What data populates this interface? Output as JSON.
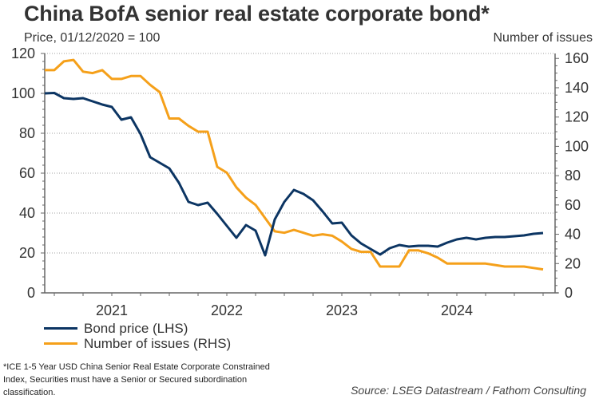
{
  "header": {
    "title": "China BofA senior real estate corporate bond*",
    "subtitle_left": "Price, 01/12/2020 = 100",
    "subtitle_right": "Number of issues"
  },
  "colors": {
    "bond_price": "#0c3563",
    "number_of_issues": "#f5a01a",
    "grid": "#a0a0a0",
    "axis": "#666666"
  },
  "chart_data": {
    "type": "line",
    "title": "China BofA senior real estate corporate bond*",
    "xlabel": "",
    "ylabel_left": "Price, 01/12/2020 = 100",
    "ylabel_right": "Number of issues",
    "x_start": "2020-12",
    "x_frequency": "monthly",
    "x_range_months": [
      0,
      52.25
    ],
    "x_year_labels": [
      {
        "label": "2021",
        "start_month": 1
      },
      {
        "label": "2022",
        "start_month": 13
      },
      {
        "label": "2023",
        "start_month": 25
      },
      {
        "label": "2024",
        "start_month": 37
      }
    ],
    "y_left": {
      "ticks": [
        0,
        20,
        40,
        60,
        80,
        100,
        120
      ],
      "lim": [
        0,
        120
      ]
    },
    "y_right": {
      "ticks": [
        0,
        20,
        40,
        60,
        80,
        100,
        120,
        140,
        160
      ],
      "lim": [
        0,
        163.4
      ]
    },
    "grid": true,
    "legend_position": "bottom-left",
    "series": [
      {
        "name": "Bond price (LHS)",
        "axis": "left",
        "values": [
          100.0,
          100.2,
          97.6,
          97.2,
          97.6,
          96.0,
          94.4,
          93.2,
          86.8,
          88.0,
          79.6,
          68.0,
          65.2,
          62.4,
          55.2,
          45.6,
          44.0,
          45.2,
          39.6,
          33.6,
          27.6,
          34.0,
          31.2,
          18.8,
          36.8,
          45.6,
          51.6,
          49.6,
          46.4,
          40.8,
          34.8,
          35.2,
          28.8,
          24.8,
          22.0,
          19.2,
          22.4,
          24.0,
          23.2,
          23.6,
          23.6,
          23.2,
          25.2,
          26.8,
          27.6,
          26.8,
          27.6,
          28.0,
          28.0,
          28.4,
          28.8,
          29.6,
          30.0
        ]
      },
      {
        "name": "Number of issues (RHS)",
        "axis": "right",
        "values": [
          152,
          152,
          158,
          159,
          151,
          150,
          152,
          146,
          146,
          148,
          148,
          142,
          137,
          119,
          119,
          114,
          110,
          110,
          86,
          82,
          72,
          65,
          60,
          51,
          42,
          41,
          43,
          41,
          39,
          40,
          39,
          35,
          30,
          28,
          28,
          18,
          18,
          18,
          29,
          29,
          27,
          24,
          20,
          20,
          20,
          20,
          20,
          19,
          18,
          18,
          18,
          17,
          16
        ]
      }
    ]
  },
  "legend": {
    "items": [
      {
        "label": "Bond price (LHS)"
      },
      {
        "label": "Number of issues (RHS)"
      }
    ]
  },
  "footnote": "*ICE 1-5 Year USD China Senior Real Estate Corporate Constrained Index, Securities must have a Senior or Secured subordination classification.",
  "source": "Source: LSEG Datastream / Fathom Consulting"
}
